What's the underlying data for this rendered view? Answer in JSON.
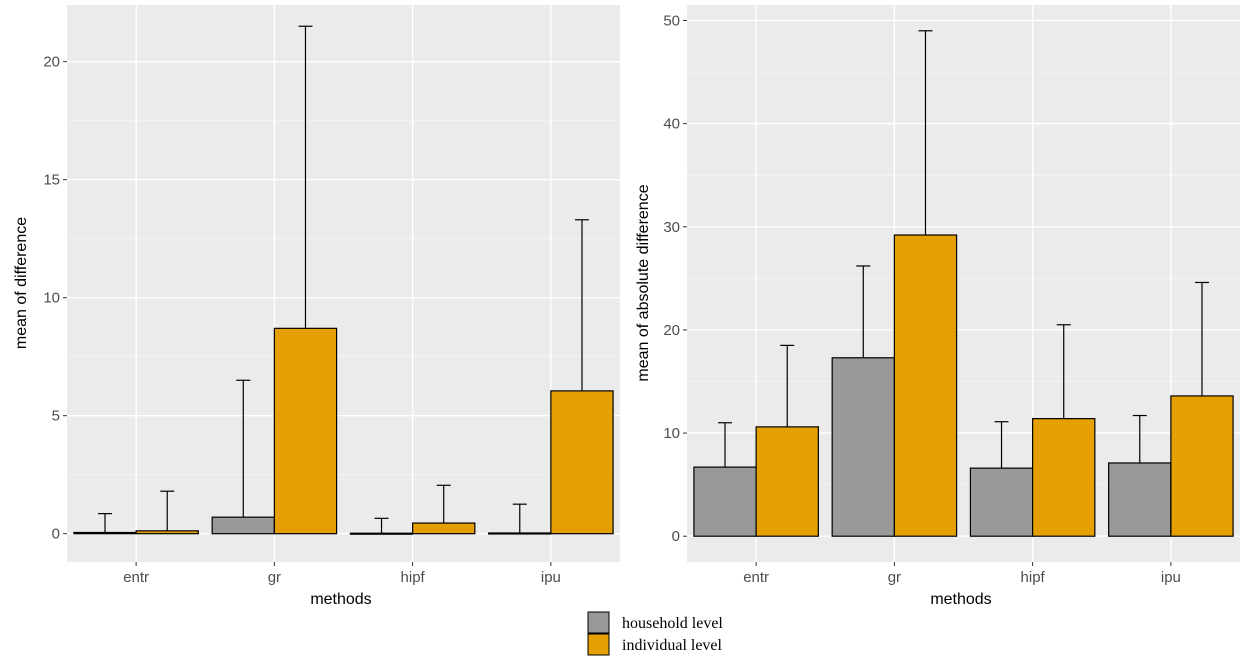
{
  "colors": {
    "panel_bg": "#ebebeb",
    "grid_major": "#ffffff",
    "grid_minor": "#f5f5f5",
    "household": "#999999",
    "individual": "#e69f00",
    "outline": "#000000"
  },
  "legend": {
    "placement": "bottom",
    "items": [
      {
        "label": "household level",
        "color": "#999999"
      },
      {
        "label": "individual level",
        "color": "#e69f00"
      }
    ]
  },
  "chart_data": [
    {
      "type": "bar",
      "xlabel": "methods",
      "ylabel": "mean of difference",
      "ylim": [
        -1.2,
        22.4
      ],
      "yticks": [
        0,
        5,
        10,
        15,
        20
      ],
      "grid": true,
      "categories": [
        "entr",
        "gr",
        "hipf",
        "ipu"
      ],
      "series": [
        {
          "name": "household level",
          "values": [
            0.05,
            0.7,
            0.02,
            0.03
          ],
          "error_upper": [
            0.85,
            6.5,
            0.65,
            1.25
          ]
        },
        {
          "name": "individual level",
          "values": [
            0.12,
            8.7,
            0.45,
            6.05
          ],
          "error_upper": [
            1.8,
            21.5,
            2.05,
            13.3
          ]
        }
      ]
    },
    {
      "type": "bar",
      "xlabel": "methods",
      "ylabel": "mean of absolute difference",
      "ylim": [
        -2.5,
        51.5
      ],
      "yticks": [
        0,
        10,
        20,
        30,
        40,
        50
      ],
      "grid": true,
      "categories": [
        "entr",
        "gr",
        "hipf",
        "ipu"
      ],
      "series": [
        {
          "name": "household level",
          "values": [
            6.7,
            17.3,
            6.6,
            7.1
          ],
          "error_upper": [
            11.0,
            26.2,
            11.1,
            11.7
          ]
        },
        {
          "name": "individual level",
          "values": [
            10.6,
            29.2,
            11.4,
            13.6
          ],
          "error_upper": [
            18.5,
            49.0,
            20.5,
            24.6
          ]
        }
      ]
    }
  ]
}
